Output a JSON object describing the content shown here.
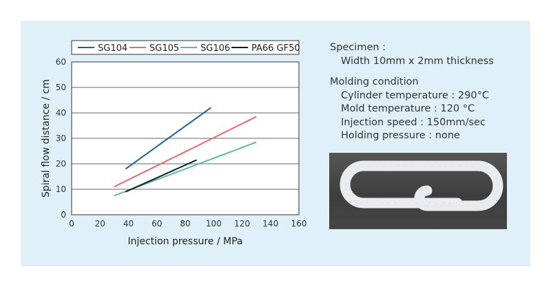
{
  "chart_data": {
    "type": "line",
    "xlabel": "Injection pressure / MPa",
    "ylabel": "Spiral flow distance  / cm",
    "xlim": [
      0,
      160
    ],
    "ylim": [
      0,
      60
    ],
    "xticks": [
      0,
      20,
      40,
      60,
      80,
      100,
      120,
      140,
      160
    ],
    "yticks": [
      0,
      10,
      20,
      30,
      40,
      50,
      60
    ],
    "grid": "horizontal",
    "legend": "top",
    "series": [
      {
        "name": "SG104",
        "color": "#1f5f9c",
        "x": [
          38,
          98
        ],
        "y": [
          18,
          42
        ]
      },
      {
        "name": "SG105",
        "color": "#ea6a6a",
        "x": [
          30,
          130
        ],
        "y": [
          11,
          38.5
        ]
      },
      {
        "name": "SG106",
        "color": "#5cb99a",
        "x": [
          30,
          130
        ],
        "y": [
          7.5,
          28.5
        ]
      },
      {
        "name": "PA66 GF50",
        "color": "#0c1d2d",
        "x": [
          38,
          88
        ],
        "y": [
          9,
          21.5
        ]
      }
    ]
  },
  "specimen": {
    "heading": "Specimen :",
    "width": "Width 10mm x 2mm thickness"
  },
  "molding": {
    "heading": "Molding condition",
    "cylinder": "Cylinder temperature : 290°C",
    "mold": "Mold temperature : 120 °C",
    "speed": "Injection speed : 150mm/sec",
    "holding": "Holding pressure : none"
  },
  "photo": {
    "subject": "spiral-flow-specimen"
  }
}
